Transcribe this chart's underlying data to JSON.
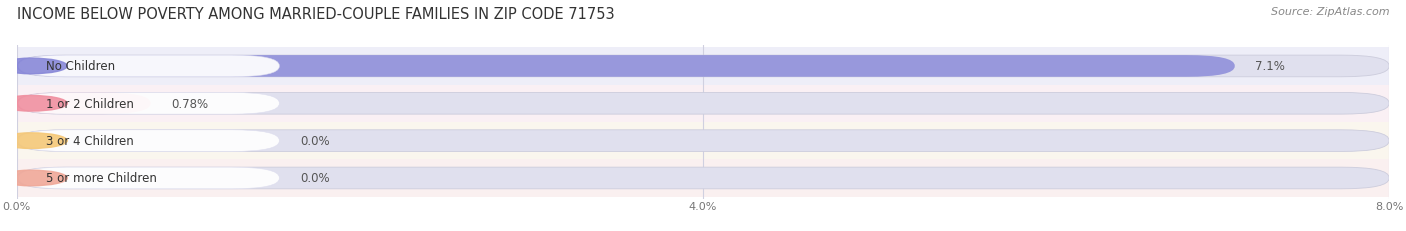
{
  "title": "INCOME BELOW POVERTY AMONG MARRIED-COUPLE FAMILIES IN ZIP CODE 71753",
  "source": "Source: ZipAtlas.com",
  "categories": [
    "No Children",
    "1 or 2 Children",
    "3 or 4 Children",
    "5 or more Children"
  ],
  "values": [
    7.1,
    0.78,
    0.0,
    0.0
  ],
  "bar_colors": [
    "#8888d8",
    "#f090a0",
    "#f5c878",
    "#f0a898"
  ],
  "row_bg_colors": [
    "#eeeef8",
    "#faf0f4",
    "#faf6ee",
    "#faf0f0"
  ],
  "bar_bg_color": "#e0e0ee",
  "xlim": [
    0,
    8.0
  ],
  "xticks": [
    0.0,
    4.0,
    8.0
  ],
  "xtick_labels": [
    "0.0%",
    "4.0%",
    "8.0%"
  ],
  "title_fontsize": 10.5,
  "source_fontsize": 8,
  "label_fontsize": 8.5,
  "value_fontsize": 8.5,
  "background_color": "#ffffff",
  "bar_height": 0.58,
  "grid_color": "#d0d0e0"
}
